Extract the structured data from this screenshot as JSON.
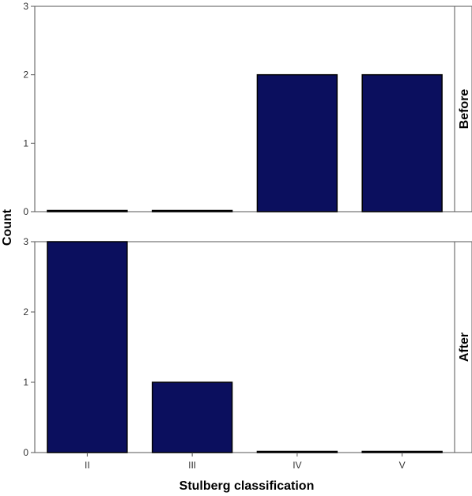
{
  "chart_data": {
    "type": "bar",
    "categories": [
      "II",
      "III",
      "IV",
      "V"
    ],
    "xlabel": "Stulberg classification",
    "ylabel": "Count",
    "ylim": [
      0,
      3
    ],
    "yticks": [
      0,
      1,
      2,
      3
    ],
    "grid": false,
    "bar_color": "#0b0f5e",
    "panels": [
      {
        "label": "Before",
        "values": [
          0,
          0,
          2,
          2
        ]
      },
      {
        "label": "After",
        "values": [
          3,
          1,
          0,
          0
        ]
      }
    ]
  }
}
